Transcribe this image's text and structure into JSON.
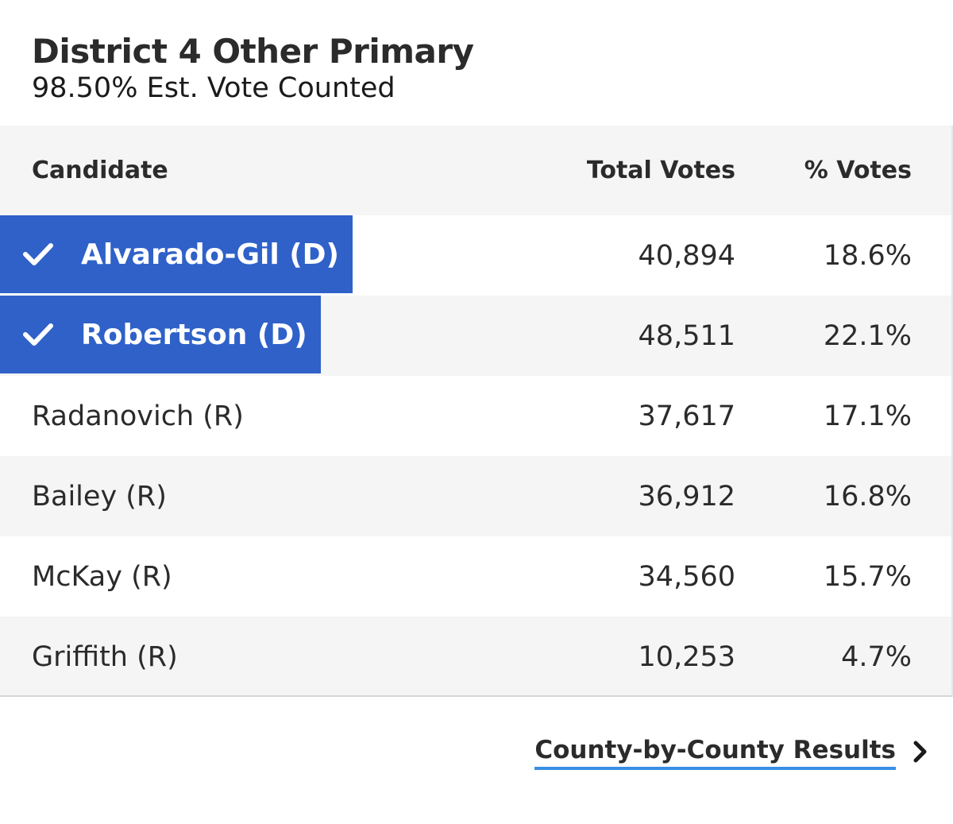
{
  "header": {
    "title": "District 4 Other Primary",
    "subtitle": "98.50% Est. Vote Counted"
  },
  "table": {
    "columns": [
      "Candidate",
      "Total Votes",
      "% Votes"
    ],
    "rows": [
      {
        "name": "Alvarado-Gil (D)",
        "votes": "40,894",
        "pct": "18.6%",
        "winner": true
      },
      {
        "name": "Robertson (D)",
        "votes": "48,511",
        "pct": "22.1%",
        "winner": true
      },
      {
        "name": "Radanovich (R)",
        "votes": "37,617",
        "pct": "17.1%",
        "winner": false
      },
      {
        "name": "Bailey (R)",
        "votes": "36,912",
        "pct": "16.8%",
        "winner": false
      },
      {
        "name": "McKay (R)",
        "votes": "34,560",
        "pct": "15.7%",
        "winner": false
      },
      {
        "name": "Griffith (R)",
        "votes": "10,253",
        "pct": "4.7%",
        "winner": false
      }
    ]
  },
  "footer": {
    "link_label": "County-by-County Results"
  },
  "colors": {
    "winner_bg": "#2f61c9",
    "link_underline": "#3a8ee6",
    "row_alt": "#f5f5f5"
  },
  "icons": {
    "winner": "checkmark-icon",
    "link": "chevron-right-icon"
  }
}
